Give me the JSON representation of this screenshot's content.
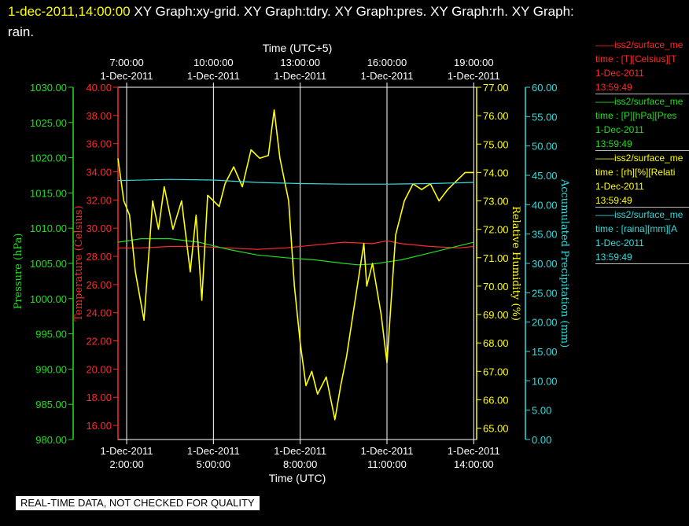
{
  "header": {
    "timestamp": "1-dec-2011,14:00:00",
    "graphs_line1": "XY Graph:xy-grid.  XY Graph:tdry.  XY Graph:pres.  XY Graph:rh.  XY Graph:",
    "graphs_line2": "rain."
  },
  "footer": {
    "disclaimer": "REAL-TIME DATA, NOT CHECKED FOR QUALITY"
  },
  "colors": {
    "background": "#000000",
    "grid": "#ffffff",
    "temperature": "#ff2a2a",
    "pressure": "#22dd22",
    "humidity": "#ffff00",
    "precipitation": "#33dddd"
  },
  "legend": [
    {
      "series": "temperature",
      "line1": "——iss2/surface_me",
      "line2": "time : [T][Celsius][T",
      "line3": "1-Dec-2011",
      "line4": "13:59:49"
    },
    {
      "series": "pressure",
      "line1": "——iss2/surface_me",
      "line2": "time : [P][hPa][Pres",
      "line3": "1-Dec-2011",
      "line4": "13:59:49"
    },
    {
      "series": "humidity",
      "line1": "——iss2/surface_me",
      "line2": "time : [rh][%][Relati",
      "line3": "1-Dec-2011",
      "line4": "13:59:49"
    },
    {
      "series": "precipitation",
      "line1": "——iss2/surface_me",
      "line2": "time : [raina][mm][A",
      "line3": "1-Dec-2011",
      "line4": "13:59:49"
    }
  ],
  "chart_data": {
    "type": "line",
    "grid": true,
    "top_axis": {
      "label": "Time (UTC+5)",
      "ticks": [
        {
          "hour_utc": 2,
          "time": "7:00:00",
          "date": "1-Dec-2011"
        },
        {
          "hour_utc": 5,
          "time": "10:00:00",
          "date": "1-Dec-2011"
        },
        {
          "hour_utc": 8,
          "time": "13:00:00",
          "date": "1-Dec-2011"
        },
        {
          "hour_utc": 11,
          "time": "16:00:00",
          "date": "1-Dec-2011"
        },
        {
          "hour_utc": 14,
          "time": "19:00:00",
          "date": "1-Dec-2011"
        }
      ]
    },
    "bottom_axis": {
      "label": "Time (UTC)",
      "xlim": [
        1.7,
        14.1
      ],
      "ticks": [
        {
          "hour_utc": 2,
          "date": "1-Dec-2011",
          "time": "2:00:00"
        },
        {
          "hour_utc": 5,
          "date": "1-Dec-2011",
          "time": "5:00:00"
        },
        {
          "hour_utc": 8,
          "date": "1-Dec-2011",
          "time": "8:00:00"
        },
        {
          "hour_utc": 11,
          "date": "1-Dec-2011",
          "time": "11:00:00"
        },
        {
          "hour_utc": 14,
          "date": "1-Dec-2011",
          "time": "14:00:00"
        }
      ]
    },
    "y_axes": [
      {
        "key": "pressure",
        "label": "Pressure (hPa)",
        "ylim": [
          980,
          1030
        ],
        "ticks": [
          "980.00",
          "985.00",
          "990.00",
          "995.00",
          "1000.00",
          "1005.00",
          "1010.00",
          "1015.00",
          "1020.00",
          "1025.00",
          "1030.00"
        ]
      },
      {
        "key": "temperature",
        "label": "Temperature (Celsius)",
        "ylim": [
          15,
          40
        ],
        "ticks": [
          "16.00",
          "18.00",
          "20.00",
          "22.00",
          "24.00",
          "26.00",
          "28.00",
          "30.00",
          "32.00",
          "34.00",
          "36.00",
          "38.00",
          "40.00"
        ]
      },
      {
        "key": "humidity",
        "label": "Relative Humidity (%)",
        "ylim": [
          64.6,
          77.0
        ],
        "ticks": [
          "65.00",
          "66.00",
          "67.00",
          "68.00",
          "69.00",
          "70.00",
          "71.00",
          "72.00",
          "73.00",
          "74.00",
          "75.00",
          "76.00",
          "77.00"
        ]
      },
      {
        "key": "precipitation",
        "label": "Accumulated Precipitation (mm)",
        "ylim": [
          0,
          60
        ],
        "ticks": [
          "0.00",
          "5.00",
          "10.00",
          "15.00",
          "20.00",
          "25.00",
          "30.00",
          "35.00",
          "40.00",
          "45.00",
          "50.00",
          "55.00",
          "60.00"
        ]
      }
    ],
    "series": [
      {
        "key": "temperature",
        "axis": "temperature",
        "x": [
          1.7,
          2.5,
          3.5,
          4.5,
          5.5,
          6.5,
          7.5,
          8.5,
          9.5,
          10.5,
          11.0,
          11.5,
          12.5,
          13.5,
          14.0
        ],
        "y": [
          28.6,
          28.6,
          28.7,
          28.7,
          28.6,
          28.5,
          28.6,
          28.8,
          29.0,
          28.9,
          29.1,
          28.9,
          28.7,
          28.6,
          28.7
        ]
      },
      {
        "key": "pressure",
        "axis": "pressure",
        "x": [
          1.7,
          2.5,
          3.5,
          4.5,
          5.5,
          6.5,
          7.5,
          8.5,
          9.5,
          10.0,
          10.5,
          11.5,
          12.5,
          13.5,
          14.0
        ],
        "y": [
          1008.0,
          1008.5,
          1008.5,
          1008.0,
          1007.0,
          1006.2,
          1005.8,
          1005.5,
          1005.0,
          1004.8,
          1004.9,
          1005.5,
          1006.5,
          1007.5,
          1008.0
        ]
      },
      {
        "key": "humidity",
        "axis": "humidity",
        "x": [
          1.7,
          1.9,
          2.1,
          2.3,
          2.6,
          2.9,
          3.1,
          3.3,
          3.6,
          3.9,
          4.2,
          4.4,
          4.6,
          4.8,
          5.0,
          5.2,
          5.4,
          5.7,
          6.0,
          6.3,
          6.6,
          6.9,
          7.1,
          7.3,
          7.5,
          7.6,
          7.8,
          8.0,
          8.2,
          8.4,
          8.6,
          8.9,
          9.2,
          9.4,
          9.6,
          9.9,
          10.2,
          10.3,
          10.5,
          10.8,
          11.0,
          11.3,
          11.6,
          11.9,
          12.2,
          12.5,
          12.8,
          13.1,
          13.4,
          13.7,
          14.0
        ],
        "y": [
          74.5,
          73.0,
          72.5,
          70.5,
          68.8,
          73.0,
          72.0,
          73.5,
          72.0,
          73.0,
          70.5,
          72.5,
          69.5,
          73.2,
          73.0,
          72.8,
          73.6,
          74.2,
          73.5,
          74.8,
          74.5,
          74.6,
          76.2,
          74.5,
          73.5,
          73.0,
          70.0,
          68.0,
          66.5,
          67.0,
          66.2,
          66.8,
          65.3,
          66.5,
          67.5,
          69.5,
          71.5,
          70.0,
          70.8,
          69.0,
          67.3,
          71.8,
          73.0,
          73.6,
          73.4,
          73.6,
          73.0,
          73.4,
          73.7,
          74.0,
          74.0
        ]
      },
      {
        "key": "precipitation",
        "axis": "precipitation",
        "x": [
          1.7,
          3.5,
          5.0,
          6.5,
          8.0,
          9.5,
          11.0,
          12.5,
          14.0
        ],
        "y": [
          44.1,
          44.3,
          44.2,
          43.8,
          43.6,
          43.5,
          43.5,
          43.6,
          43.8
        ]
      }
    ]
  }
}
